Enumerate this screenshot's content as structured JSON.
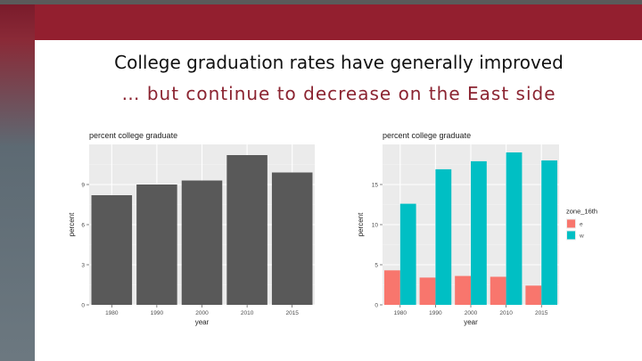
{
  "slide": {
    "title": "College graduation rates have generally improved",
    "subtitle": "… but continue to decrease on the East side"
  },
  "colors": {
    "header": "#931f2f",
    "bar_total": "#595959",
    "series_e": "#f8766d",
    "series_w": "#00bfc4",
    "panel_bg": "#ebebeb"
  },
  "chart_data": [
    {
      "type": "bar",
      "title": "percent college graduate",
      "xlabel": "year",
      "ylabel": "percent",
      "categories": [
        "1980",
        "1990",
        "2000",
        "2010",
        "2015"
      ],
      "values": [
        8.2,
        9.0,
        9.3,
        11.2,
        9.9
      ],
      "yticks": [
        0,
        3,
        6,
        9
      ],
      "ylim": [
        0,
        12
      ],
      "grid": true,
      "legend": "none"
    },
    {
      "type": "bar",
      "title": "percent college graduate",
      "xlabel": "year",
      "ylabel": "percent",
      "categories": [
        "1980",
        "1990",
        "2000",
        "2010",
        "2015"
      ],
      "series": [
        {
          "name": "e",
          "values": [
            4.3,
            3.4,
            3.6,
            3.5,
            2.4
          ]
        },
        {
          "name": "w",
          "values": [
            12.6,
            16.9,
            17.9,
            19.0,
            18.0
          ]
        }
      ],
      "yticks": [
        0,
        5,
        10,
        15
      ],
      "ylim": [
        0,
        20
      ],
      "grid": true,
      "legend": "right",
      "legend_title": "zone_16th"
    }
  ]
}
